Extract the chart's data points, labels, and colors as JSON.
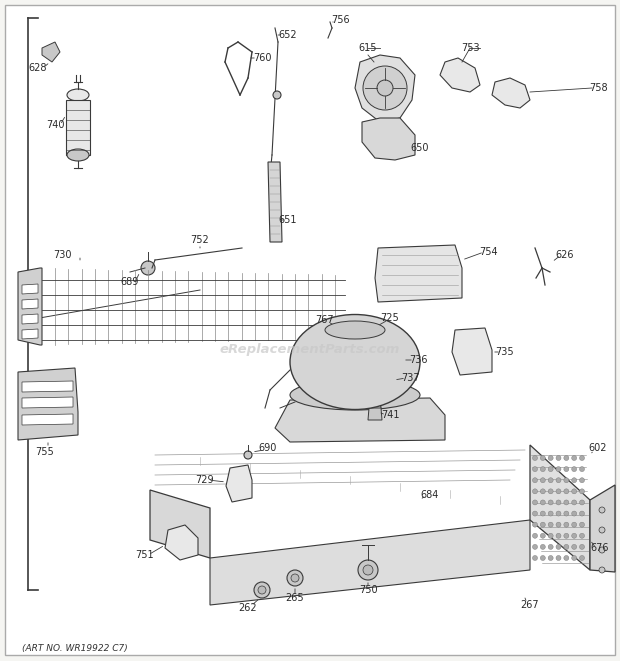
{
  "art_no": "(ART NO. WR19922 C7)",
  "watermark": "eReplacementParts.com",
  "bg_color": "#f5f5f2",
  "line_color": "#3a3a3a",
  "label_color": "#2a2a2a",
  "part_fill": "#e8e8e8",
  "shadow_fill": "#c8c8c8",
  "label_size": 7.0,
  "fig_w": 6.2,
  "fig_h": 6.61,
  "dpi": 100
}
